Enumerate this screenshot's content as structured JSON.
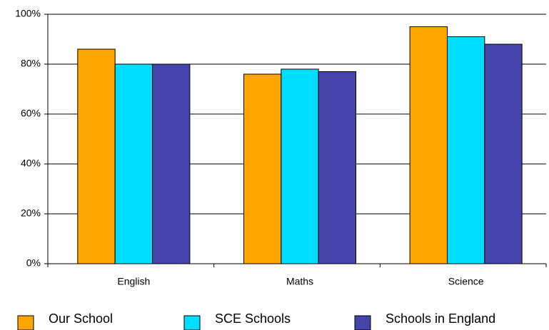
{
  "chart_data": {
    "type": "bar",
    "categories": [
      "English",
      "Maths",
      "Science"
    ],
    "series": [
      {
        "name": "Our School",
        "color": "#ffa500",
        "values": [
          86,
          76,
          95
        ]
      },
      {
        "name": "SCE Schools",
        "color": "#00ddff",
        "values": [
          80,
          78,
          91
        ]
      },
      {
        "name": "Schools in England",
        "color": "#4444aa",
        "values": [
          80,
          77,
          88
        ]
      }
    ],
    "ylim": [
      0,
      100
    ],
    "yticks": [
      {
        "value": 0,
        "label": "0%"
      },
      {
        "value": 20,
        "label": "20%"
      },
      {
        "value": 40,
        "label": "40%"
      },
      {
        "value": 60,
        "label": "60%"
      },
      {
        "value": 80,
        "label": "80%"
      },
      {
        "value": 100,
        "label": "100%"
      }
    ],
    "grid": true,
    "legend": "bottom"
  }
}
